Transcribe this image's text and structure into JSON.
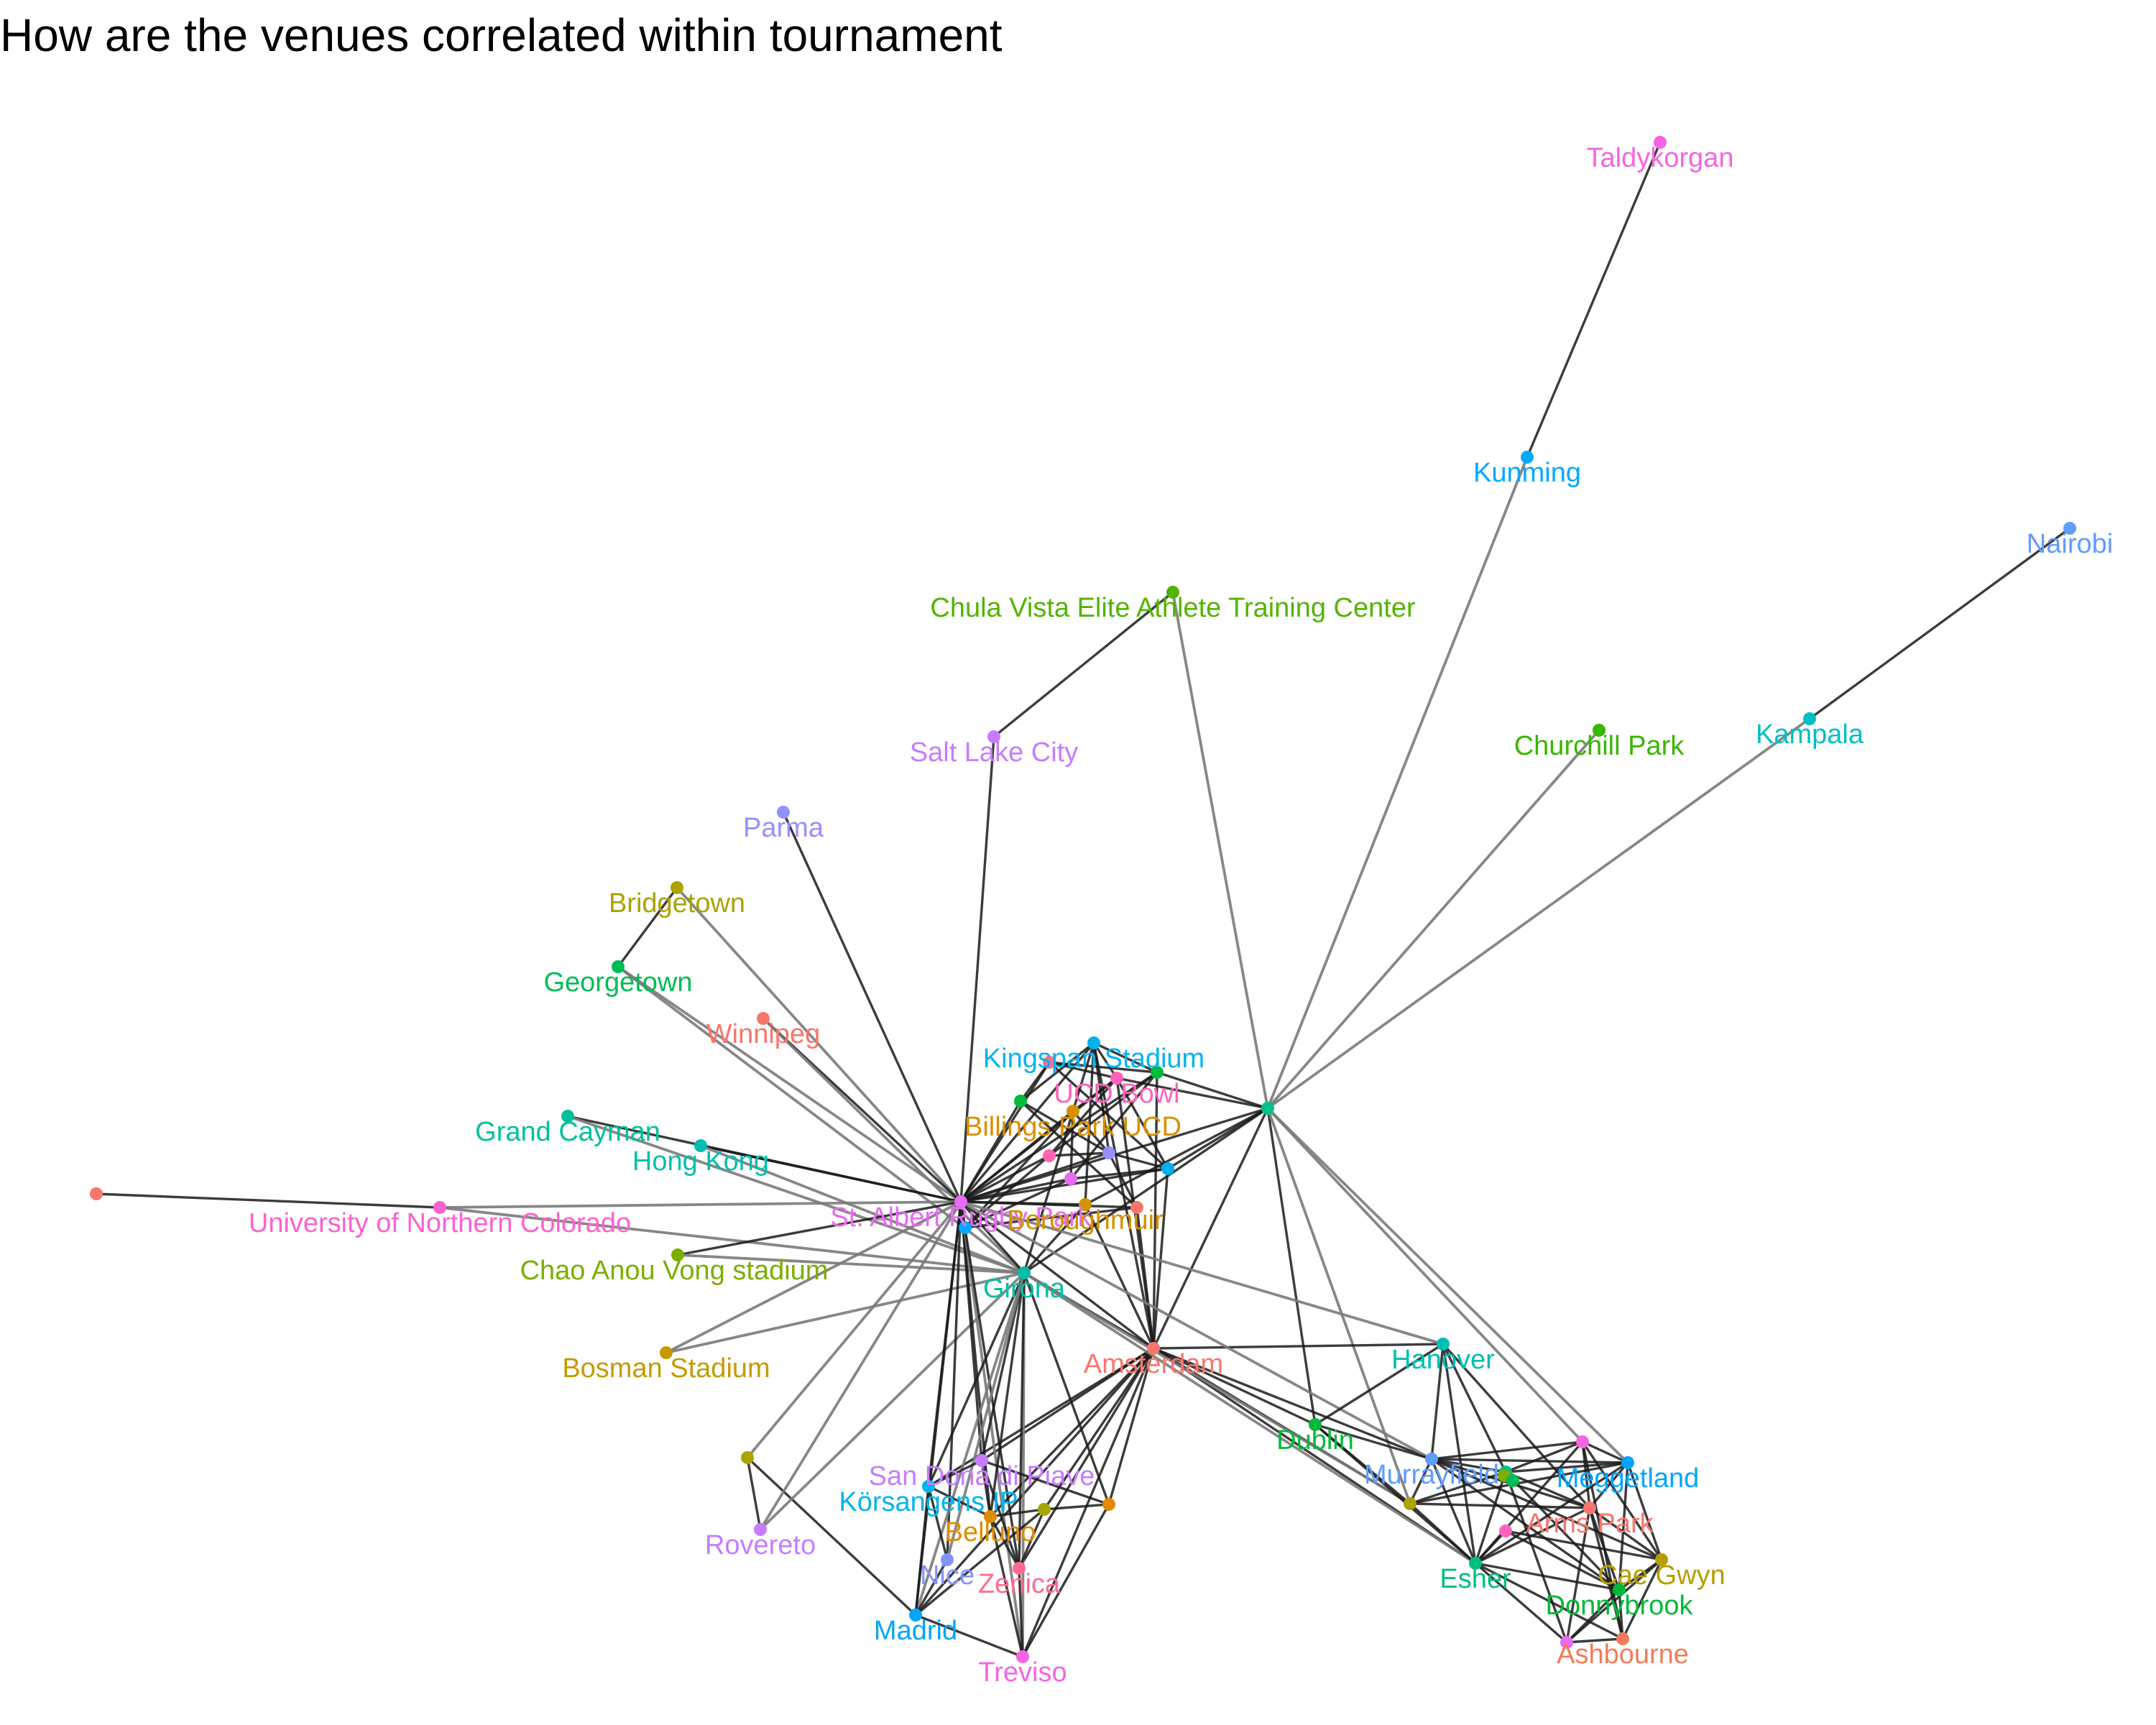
{
  "title": "How are the venues correlated within tournament",
  "edge_colors": {
    "strong": "#1a1a1a",
    "weak": "#7a7a7a"
  },
  "nodes": [
    {
      "id": "Taldykorgan",
      "label": "Taldykorgan",
      "color": "#F564E3"
    },
    {
      "id": "Kunming",
      "label": "Kunming",
      "color": "#00A9FF"
    },
    {
      "id": "Nairobi",
      "label": "Nairobi",
      "color": "#619CFF"
    },
    {
      "id": "ChulaVista",
      "label": "Chula Vista Elite Athlete Training Center",
      "color": "#53B400"
    },
    {
      "id": "Kampala",
      "label": "Kampala",
      "color": "#00BFC4"
    },
    {
      "id": "ChurchillPark",
      "label": "Churchill Park",
      "color": "#39B600"
    },
    {
      "id": "SaltLakeCity",
      "label": "Salt Lake City",
      "color": "#C77CFF"
    },
    {
      "id": "Parma",
      "label": "Parma",
      "color": "#9590FF"
    },
    {
      "id": "Bridgetown",
      "label": "Bridgetown",
      "color": "#ABA300"
    },
    {
      "id": "Georgetown",
      "label": "Georgetown",
      "color": "#00BC56"
    },
    {
      "id": "Winnipeg",
      "label": "Winnipeg",
      "color": "#F8766D"
    },
    {
      "id": "GrandCayman",
      "label": "Grand Cayman",
      "color": "#00C19A"
    },
    {
      "id": "HongKong",
      "label": "Hong Kong",
      "color": "#00BFAF"
    },
    {
      "id": "UNC",
      "label": "University of  Northern Colorado",
      "color": "#FD61D1"
    },
    {
      "id": "LeftOutlier",
      "label": "",
      "color": "#F8766D"
    },
    {
      "id": "ChaoAnouVong",
      "label": "Chao Anou Vong stadium",
      "color": "#7CAE00"
    },
    {
      "id": "BosmanStadium",
      "label": "Bosman Stadium",
      "color": "#C49A00"
    },
    {
      "id": "Rovereto",
      "label": "Rovereto",
      "color": "#C77CFF"
    },
    {
      "id": "LeftOlive",
      "label": "",
      "color": "#ABA300"
    },
    {
      "id": "Hub",
      "label": "",
      "color": "#00C08B"
    },
    {
      "id": "Kingspan",
      "label": "Kingspan Stadium",
      "color": "#00B4EF"
    },
    {
      "id": "UCDBowl",
      "label": "UCD Bowl",
      "color": "#FF62BC"
    },
    {
      "id": "BillingsPark",
      "label": "Billings Park UCD",
      "color": "#D89000"
    },
    {
      "id": "StAlbert",
      "label": "St. Albert Rugby Park",
      "color": "#E76BF3"
    },
    {
      "id": "Boroughmuir",
      "label": "Boroughmuir",
      "color": "#D39200"
    },
    {
      "id": "Girona",
      "label": "Girona",
      "color": "#00BFA5"
    },
    {
      "id": "Amsterdam",
      "label": "Amsterdam",
      "color": "#F8766D"
    },
    {
      "id": "Hanover",
      "label": "Hanover",
      "color": "#00BFB2"
    },
    {
      "id": "Dublin",
      "label": "Dublin",
      "color": "#00BA38"
    },
    {
      "id": "Murrayfield",
      "label": "Murrayfield",
      "color": "#619CFF"
    },
    {
      "id": "Meggetland",
      "label": "Meggetland",
      "color": "#00A5FF"
    },
    {
      "id": "ArmsPark",
      "label": "Arms Park",
      "color": "#F8766D"
    },
    {
      "id": "CaeGwyn",
      "label": "Cae Gwyn",
      "color": "#B79F00"
    },
    {
      "id": "Esher",
      "label": "Esher",
      "color": "#00BF7D"
    },
    {
      "id": "Donnybrook",
      "label": "Donnybrook",
      "color": "#00BA38"
    },
    {
      "id": "Ashbourne",
      "label": "Ashbourne",
      "color": "#F37B59"
    },
    {
      "id": "SanDona",
      "label": "San Donà di Piave",
      "color": "#C77CFF"
    },
    {
      "id": "Korsangens",
      "label": "Körsangens IP",
      "color": "#00B4EF"
    },
    {
      "id": "Belluno",
      "label": "Belluno",
      "color": "#DE8C00"
    },
    {
      "id": "Nice",
      "label": "Nice",
      "color": "#8494FF"
    },
    {
      "id": "Zenica",
      "label": "Zenica",
      "color": "#FF6C91"
    },
    {
      "id": "Madrid",
      "label": "Madrid",
      "color": "#00A5FF"
    },
    {
      "id": "Treviso",
      "label": "Treviso",
      "color": "#F564E3"
    },
    {
      "id": "EastOrange",
      "label": "",
      "color": "#E58700"
    },
    {
      "id": "c1",
      "label": "",
      "color": "#00BA38"
    },
    {
      "id": "c2",
      "label": "",
      "color": "#FF6C91"
    },
    {
      "id": "c3",
      "label": "",
      "color": "#00BA38"
    },
    {
      "id": "c4",
      "label": "",
      "color": "#FF64B0"
    },
    {
      "id": "c5",
      "label": "",
      "color": "#9590FF"
    },
    {
      "id": "c6",
      "label": "",
      "color": "#00B0F6"
    },
    {
      "id": "c7",
      "label": "",
      "color": "#E76BF3"
    },
    {
      "id": "c8",
      "label": "",
      "color": "#00A9FF"
    },
    {
      "id": "c9",
      "label": "",
      "color": "#F8766D"
    },
    {
      "id": "s1",
      "label": "",
      "color": "#ABA300"
    },
    {
      "id": "s2",
      "label": "",
      "color": "#00C08B"
    },
    {
      "id": "s3",
      "label": "",
      "color": "#F564E3"
    },
    {
      "id": "s4",
      "label": "",
      "color": "#7CAE00"
    },
    {
      "id": "s5",
      "label": "",
      "color": "#00BC56"
    },
    {
      "id": "s6",
      "label": "",
      "color": "#A3A500"
    },
    {
      "id": "s7",
      "label": "",
      "color": "#E76BF3"
    },
    {
      "id": "s8",
      "label": "",
      "color": "#FF62BC"
    }
  ],
  "edges": [
    [
      "Taldykorgan",
      "Kunming",
      "strong"
    ],
    [
      "Kunming",
      "Hub",
      "weak"
    ],
    [
      "Nairobi",
      "Kampala",
      "strong"
    ],
    [
      "Kampala",
      "Hub",
      "weak"
    ],
    [
      "ChurchillPark",
      "Hub",
      "weak"
    ],
    [
      "ChulaVista",
      "Hub",
      "weak"
    ],
    [
      "ChulaVista",
      "SaltLakeCity",
      "strong"
    ],
    [
      "SaltLakeCity",
      "StAlbert",
      "strong"
    ],
    [
      "Parma",
      "StAlbert",
      "strong"
    ],
    [
      "Bridgetown",
      "Georgetown",
      "strong"
    ],
    [
      "Bridgetown",
      "StAlbert",
      "weak"
    ],
    [
      "Georgetown",
      "StAlbert",
      "weak"
    ],
    [
      "Georgetown",
      "Girona",
      "weak"
    ],
    [
      "Winnipeg",
      "StAlbert",
      "strong"
    ],
    [
      "Winnipeg",
      "Girona",
      "weak"
    ],
    [
      "GrandCayman",
      "StAlbert",
      "strong"
    ],
    [
      "GrandCayman",
      "Girona",
      "weak"
    ],
    [
      "HongKong",
      "StAlbert",
      "strong"
    ],
    [
      "HongKong",
      "Girona",
      "weak"
    ],
    [
      "LeftOutlier",
      "UNC",
      "strong"
    ],
    [
      "UNC",
      "StAlbert",
      "weak"
    ],
    [
      "UNC",
      "Girona",
      "weak"
    ],
    [
      "ChaoAnouVong",
      "StAlbert",
      "strong"
    ],
    [
      "ChaoAnouVong",
      "Girona",
      "weak"
    ],
    [
      "BosmanStadium",
      "StAlbert",
      "weak"
    ],
    [
      "BosmanStadium",
      "Girona",
      "weak"
    ],
    [
      "LeftOlive",
      "Rovereto",
      "strong"
    ],
    [
      "LeftOlive",
      "Madrid",
      "strong"
    ],
    [
      "LeftOlive",
      "StAlbert",
      "weak"
    ],
    [
      "Rovereto",
      "StAlbert",
      "weak"
    ],
    [
      "Rovereto",
      "Girona",
      "weak"
    ],
    [
      "StAlbert",
      "Kingspan",
      "strong"
    ],
    [
      "StAlbert",
      "UCDBowl",
      "strong"
    ],
    [
      "StAlbert",
      "BillingsPark",
      "strong"
    ],
    [
      "StAlbert",
      "Boroughmuir",
      "strong"
    ],
    [
      "StAlbert",
      "Girona",
      "strong"
    ],
    [
      "StAlbert",
      "Amsterdam",
      "strong"
    ],
    [
      "StAlbert",
      "c1",
      "strong"
    ],
    [
      "StAlbert",
      "c2",
      "strong"
    ],
    [
      "StAlbert",
      "c3",
      "strong"
    ],
    [
      "StAlbert",
      "c4",
      "strong"
    ],
    [
      "StAlbert",
      "c5",
      "strong"
    ],
    [
      "StAlbert",
      "c6",
      "strong"
    ],
    [
      "StAlbert",
      "c7",
      "strong"
    ],
    [
      "StAlbert",
      "c8",
      "strong"
    ],
    [
      "StAlbert",
      "c9",
      "strong"
    ],
    [
      "Kingspan",
      "UCDBowl",
      "strong"
    ],
    [
      "Kingspan",
      "BillingsPark",
      "strong"
    ],
    [
      "Kingspan",
      "c1",
      "strong"
    ],
    [
      "Kingspan",
      "c3",
      "strong"
    ],
    [
      "Kingspan",
      "c5",
      "strong"
    ],
    [
      "Kingspan",
      "Boroughmuir",
      "strong"
    ],
    [
      "UCDBowl",
      "BillingsPark",
      "strong"
    ],
    [
      "UCDBowl",
      "c2",
      "strong"
    ],
    [
      "UCDBowl",
      "c4",
      "strong"
    ],
    [
      "UCDBowl",
      "c6",
      "strong"
    ],
    [
      "UCDBowl",
      "Amsterdam",
      "strong"
    ],
    [
      "BillingsPark",
      "c5",
      "strong"
    ],
    [
      "BillingsPark",
      "c7",
      "strong"
    ],
    [
      "BillingsPark",
      "c8",
      "strong"
    ],
    [
      "BillingsPark",
      "Girona",
      "strong"
    ],
    [
      "c1",
      "c2",
      "strong"
    ],
    [
      "c2",
      "c3",
      "strong"
    ],
    [
      "c3",
      "c4",
      "strong"
    ],
    [
      "c4",
      "c5",
      "strong"
    ],
    [
      "c5",
      "c6",
      "strong"
    ],
    [
      "c6",
      "c7",
      "strong"
    ],
    [
      "c7",
      "c8",
      "strong"
    ],
    [
      "c8",
      "c9",
      "strong"
    ],
    [
      "c9",
      "c1",
      "strong"
    ],
    [
      "c1",
      "c5",
      "strong"
    ],
    [
      "c2",
      "c6",
      "strong"
    ],
    [
      "c3",
      "c7",
      "strong"
    ],
    [
      "c4",
      "c8",
      "strong"
    ],
    [
      "c5",
      "c9",
      "strong"
    ],
    [
      "c3",
      "Amsterdam",
      "strong"
    ],
    [
      "c6",
      "Amsterdam",
      "strong"
    ],
    [
      "c9",
      "Amsterdam",
      "strong"
    ],
    [
      "Boroughmuir",
      "Amsterdam",
      "strong"
    ],
    [
      "Boroughmuir",
      "Girona",
      "strong"
    ],
    [
      "Kingspan",
      "Amsterdam",
      "strong"
    ],
    [
      "Girona",
      "Amsterdam",
      "strong"
    ],
    [
      "Hub",
      "StAlbert",
      "strong"
    ],
    [
      "Hub",
      "Amsterdam",
      "strong"
    ],
    [
      "Hub",
      "Girona",
      "strong"
    ],
    [
      "Hub",
      "Boroughmuir",
      "strong"
    ],
    [
      "Hub",
      "UCDBowl",
      "strong"
    ],
    [
      "Hub",
      "c3",
      "strong"
    ],
    [
      "Hub",
      "c6",
      "strong"
    ],
    [
      "Hub",
      "Dublin",
      "strong"
    ],
    [
      "Hub",
      "s3",
      "weak"
    ],
    [
      "Hub",
      "Meggetland",
      "weak"
    ],
    [
      "Hub",
      "s1",
      "weak"
    ],
    [
      "Amsterdam",
      "Hanover",
      "strong"
    ],
    [
      "Amsterdam",
      "Dublin",
      "strong"
    ],
    [
      "Amsterdam",
      "Murrayfield",
      "strong"
    ],
    [
      "Amsterdam",
      "s1",
      "strong"
    ],
    [
      "Amsterdam",
      "Esher",
      "strong"
    ],
    [
      "Amsterdam",
      "SanDona",
      "strong"
    ],
    [
      "Amsterdam",
      "Korsangens",
      "strong"
    ],
    [
      "Amsterdam",
      "Belluno",
      "strong"
    ],
    [
      "Amsterdam",
      "Zenica",
      "strong"
    ],
    [
      "Amsterdam",
      "Madrid",
      "strong"
    ],
    [
      "Amsterdam",
      "Treviso",
      "strong"
    ],
    [
      "Amsterdam",
      "EastOrange",
      "strong"
    ],
    [
      "Amsterdam",
      "s6",
      "strong"
    ],
    [
      "StAlbert",
      "Hanover",
      "weak"
    ],
    [
      "StAlbert",
      "Murrayfield",
      "weak"
    ],
    [
      "Girona",
      "Esher",
      "weak"
    ],
    [
      "Girona",
      "s1",
      "weak"
    ],
    [
      "StAlbert",
      "SanDona",
      "strong"
    ],
    [
      "StAlbert",
      "Korsangens",
      "strong"
    ],
    [
      "StAlbert",
      "Belluno",
      "strong"
    ],
    [
      "StAlbert",
      "Madrid",
      "strong"
    ],
    [
      "StAlbert",
      "Treviso",
      "weak"
    ],
    [
      "StAlbert",
      "Nice",
      "strong"
    ],
    [
      "StAlbert",
      "Zenica",
      "strong"
    ],
    [
      "Girona",
      "SanDona",
      "strong"
    ],
    [
      "Girona",
      "Korsangens",
      "strong"
    ],
    [
      "Girona",
      "Belluno",
      "strong"
    ],
    [
      "Girona",
      "Madrid",
      "weak"
    ],
    [
      "Girona",
      "Treviso",
      "weak"
    ],
    [
      "Girona",
      "Zenica",
      "strong"
    ],
    [
      "Girona",
      "Nice",
      "weak"
    ],
    [
      "Girona",
      "EastOrange",
      "strong"
    ],
    [
      "SanDona",
      "Korsangens",
      "strong"
    ],
    [
      "SanDona",
      "Belluno",
      "strong"
    ],
    [
      "SanDona",
      "EastOrange",
      "strong"
    ],
    [
      "SanDona",
      "Zenica",
      "strong"
    ],
    [
      "Korsangens",
      "Belluno",
      "strong"
    ],
    [
      "Korsangens",
      "Madrid",
      "strong"
    ],
    [
      "Korsangens",
      "Nice",
      "strong"
    ],
    [
      "Belluno",
      "Zenica",
      "strong"
    ],
    [
      "Belluno",
      "s6",
      "strong"
    ],
    [
      "Belluno",
      "Treviso",
      "strong"
    ],
    [
      "Nice",
      "Madrid",
      "strong"
    ],
    [
      "Zenica",
      "Treviso",
      "strong"
    ],
    [
      "Madrid",
      "Treviso",
      "strong"
    ],
    [
      "Madrid",
      "s6",
      "strong"
    ],
    [
      "s6",
      "EastOrange",
      "strong"
    ],
    [
      "s6",
      "Zenica",
      "strong"
    ],
    [
      "EastOrange",
      "Treviso",
      "strong"
    ],
    [
      "Hanover",
      "Dublin",
      "strong"
    ],
    [
      "Hanover",
      "Murrayfield",
      "strong"
    ],
    [
      "Hanover",
      "Esher",
      "strong"
    ],
    [
      "Hanover",
      "s2",
      "strong"
    ],
    [
      "Hanover",
      "ArmsPark",
      "strong"
    ],
    [
      "Dublin",
      "Murrayfield",
      "strong"
    ],
    [
      "Dublin",
      "s1",
      "strong"
    ],
    [
      "Dublin",
      "Esher",
      "strong"
    ],
    [
      "Murrayfield",
      "s1",
      "strong"
    ],
    [
      "Murrayfield",
      "s2",
      "strong"
    ],
    [
      "Murrayfield",
      "Meggetland",
      "strong"
    ],
    [
      "Murrayfield",
      "ArmsPark",
      "strong"
    ],
    [
      "Murrayfield",
      "Esher",
      "strong"
    ],
    [
      "Murrayfield",
      "Donnybrook",
      "strong"
    ],
    [
      "Murrayfield",
      "CaeGwyn",
      "strong"
    ],
    [
      "Murrayfield",
      "s3",
      "strong"
    ],
    [
      "s1",
      "s2",
      "strong"
    ],
    [
      "s1",
      "ArmsPark",
      "strong"
    ],
    [
      "s1",
      "Esher",
      "strong"
    ],
    [
      "s1",
      "Meggetland",
      "strong"
    ],
    [
      "s2",
      "s3",
      "strong"
    ],
    [
      "s2",
      "Meggetland",
      "strong"
    ],
    [
      "s2",
      "ArmsPark",
      "strong"
    ],
    [
      "s2",
      "Esher",
      "strong"
    ],
    [
      "s2",
      "Donnybrook",
      "strong"
    ],
    [
      "s3",
      "Meggetland",
      "strong"
    ],
    [
      "s3",
      "ArmsPark",
      "strong"
    ],
    [
      "s3",
      "Esher",
      "strong"
    ],
    [
      "s3",
      "CaeGwyn",
      "strong"
    ],
    [
      "Meggetland",
      "ArmsPark",
      "strong"
    ],
    [
      "Meggetland",
      "CaeGwyn",
      "strong"
    ],
    [
      "Meggetland",
      "Donnybrook",
      "strong"
    ],
    [
      "Meggetland",
      "Esher",
      "strong"
    ],
    [
      "ArmsPark",
      "Esher",
      "strong"
    ],
    [
      "ArmsPark",
      "CaeGwyn",
      "strong"
    ],
    [
      "ArmsPark",
      "Donnybrook",
      "strong"
    ],
    [
      "ArmsPark",
      "Ashbourne",
      "strong"
    ],
    [
      "ArmsPark",
      "s7",
      "strong"
    ],
    [
      "Esher",
      "Donnybrook",
      "strong"
    ],
    [
      "Esher",
      "s7",
      "strong"
    ],
    [
      "Esher",
      "Ashbourne",
      "strong"
    ],
    [
      "CaeGwyn",
      "Donnybrook",
      "strong"
    ],
    [
      "CaeGwyn",
      "Ashbourne",
      "strong"
    ],
    [
      "CaeGwyn",
      "s7",
      "strong"
    ],
    [
      "Donnybrook",
      "Ashbourne",
      "strong"
    ],
    [
      "Donnybrook",
      "s7",
      "strong"
    ],
    [
      "s7",
      "Ashbourne",
      "strong"
    ],
    [
      "s8",
      "Esher",
      "strong"
    ],
    [
      "s8",
      "Donnybrook",
      "strong"
    ],
    [
      "s8",
      "CaeGwyn",
      "strong"
    ],
    [
      "s3",
      "Ashbourne",
      "strong"
    ],
    [
      "s2",
      "s7",
      "strong"
    ]
  ]
}
